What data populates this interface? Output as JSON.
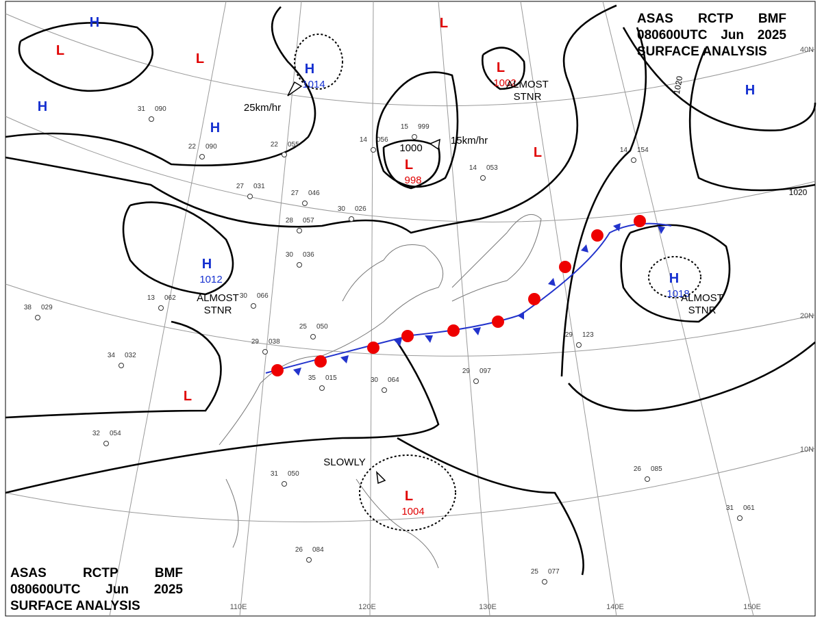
{
  "header": {
    "words1": [
      "ASAS",
      "RCTP",
      "BMF"
    ],
    "words2": [
      "080600UTC",
      "Jun",
      "2025"
    ],
    "line3": "SURFACE ANALYSIS"
  },
  "pressure_centers": [
    {
      "type": "H"
    },
    {
      "type": "L"
    },
    {
      "type": "L"
    },
    {
      "type": "H",
      "value": "1014"
    },
    {
      "type": "H"
    },
    {
      "type": "H"
    },
    {
      "type": "L"
    },
    {
      "type": "L",
      "value": "1002"
    },
    {
      "type": "L"
    },
    {
      "type": "L",
      "value": "998"
    },
    {
      "type": "H",
      "value": "1012"
    },
    {
      "type": "H"
    },
    {
      "type": "H",
      "value": "1018"
    },
    {
      "type": "L"
    },
    {
      "type": "L",
      "value": "1004"
    }
  ],
  "annotations": [
    "ALMOST\nSTNR",
    "ALMOST\nSTNR",
    "ALMOST\nSTNR",
    "25km/hr",
    "15km/hr",
    "SLOWLY",
    "1000"
  ],
  "isobar_labels": [
    "1020",
    "1020"
  ],
  "latitude_labels": [
    "10N",
    "20N",
    "40N"
  ],
  "longitude_labels": [
    "110E",
    "120E",
    "130E",
    "140E",
    "150E"
  ],
  "stations": [
    {
      "t": "31",
      "p": "090"
    },
    {
      "t": "22",
      "p": "090"
    },
    {
      "t": "27",
      "p": "031"
    },
    {
      "t": "27",
      "p": "046"
    },
    {
      "t": "30",
      "p": "026"
    },
    {
      "t": "30",
      "p": "036"
    },
    {
      "t": "30",
      "p": "066"
    },
    {
      "t": "13",
      "p": "062"
    },
    {
      "t": "34",
      "p": "032"
    },
    {
      "t": "32",
      "p": "054"
    },
    {
      "t": "31",
      "p": "050"
    },
    {
      "t": "25",
      "p": "050"
    },
    {
      "t": "29",
      "p": "038"
    },
    {
      "t": "35",
      "p": "015"
    },
    {
      "t": "30",
      "p": "064"
    },
    {
      "t": "29",
      "p": "097"
    },
    {
      "t": "29",
      "p": "123"
    },
    {
      "t": "26",
      "p": "085"
    },
    {
      "t": "31",
      "p": "061"
    },
    {
      "t": "26",
      "p": "084"
    },
    {
      "t": "25",
      "p": "077"
    },
    {
      "t": "14",
      "p": "154"
    },
    {
      "t": "14",
      "p": "053"
    },
    {
      "t": "15",
      "p": "999"
    },
    {
      "t": "14",
      "p": "056"
    },
    {
      "t": "22",
      "p": "055"
    },
    {
      "t": "28",
      "p": "057"
    },
    {
      "t": "38",
      "p": "029"
    }
  ]
}
